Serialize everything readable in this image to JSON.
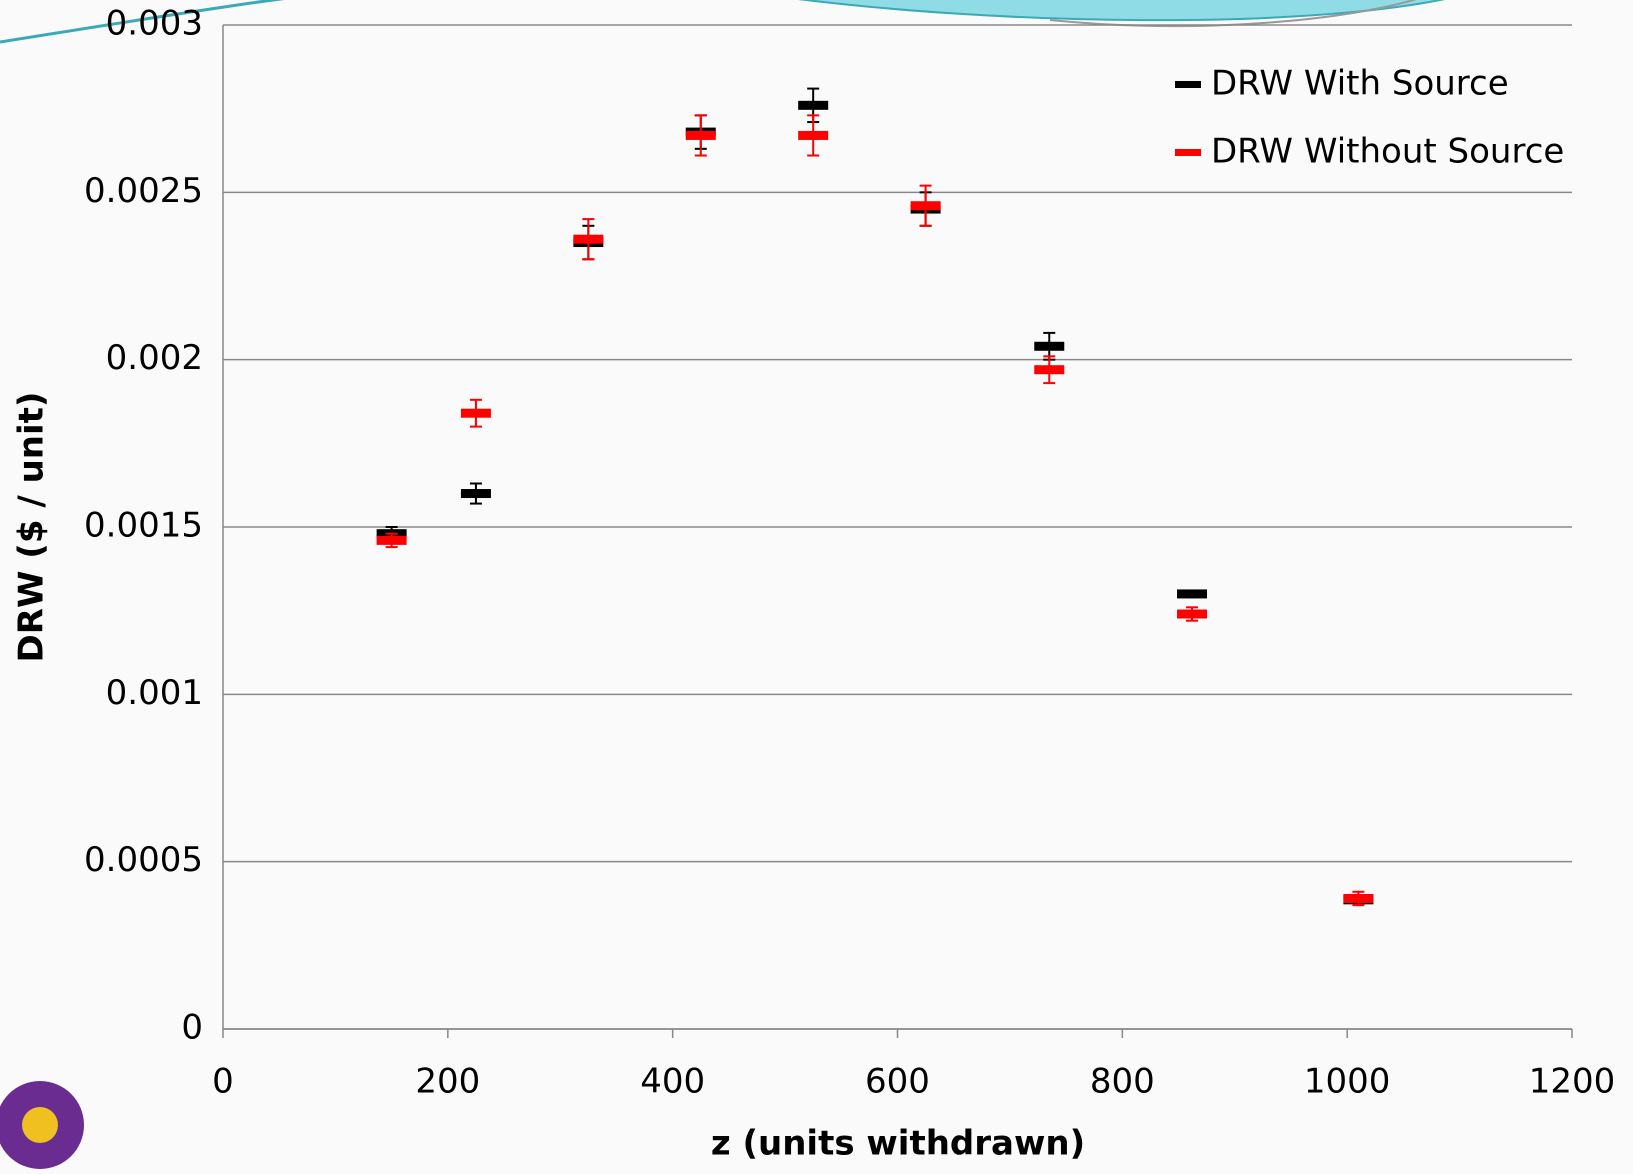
{
  "chart_data": {
    "type": "scatter",
    "x_label": "z (units withdrawn)",
    "y_label": "DRW ($ / unit)",
    "x": [
      150,
      225,
      325,
      425,
      525,
      625,
      735,
      862,
      1010
    ],
    "series": [
      {
        "name": "DRW With Source",
        "color": "#000000",
        "values": [
          0.00148,
          0.0016,
          0.00235,
          0.00268,
          0.00276,
          0.00245,
          0.00204,
          0.0013,
          0.000386
        ],
        "errors": [
          2e-05,
          3e-05,
          5e-05,
          5e-05,
          5e-05,
          5e-05,
          4e-05,
          1e-05,
          1e-05
        ]
      },
      {
        "name": "DRW Without Source",
        "color": "#ff0000",
        "values": [
          0.00146,
          0.00184,
          0.00236,
          0.00267,
          0.00267,
          0.00246,
          0.00197,
          0.00124,
          0.00039
        ],
        "errors": [
          2e-05,
          4e-05,
          6e-05,
          6e-05,
          6e-05,
          6e-05,
          4e-05,
          2e-05,
          2e-05
        ]
      }
    ],
    "xlim": [
      0,
      1200
    ],
    "xticks": [
      0,
      200,
      400,
      600,
      800,
      1000,
      1200
    ],
    "ylim": [
      0,
      0.003
    ],
    "yticks": [
      0,
      0.0005,
      0.001,
      0.0015,
      0.002,
      0.0025,
      0.003
    ],
    "grid": true,
    "legend": "top-right"
  }
}
